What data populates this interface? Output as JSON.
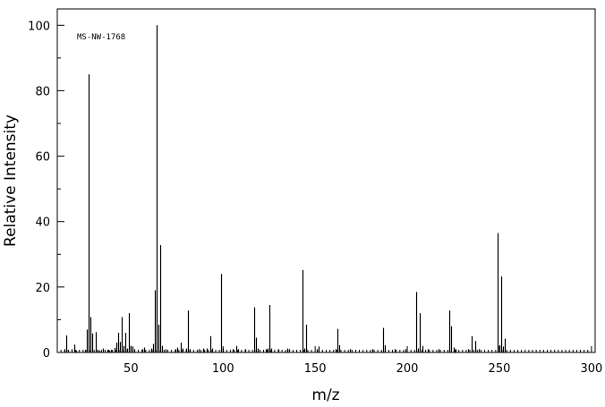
{
  "chart_data": {
    "type": "bar",
    "title": "",
    "annotation": "MS-NW-1768",
    "xlabel": "m/z",
    "ylabel": "Relative Intensity",
    "xlim": [
      10,
      302
    ],
    "ylim": [
      0,
      105
    ],
    "x_major_ticks": [
      50,
      100,
      150,
      200,
      250,
      300
    ],
    "y_major_ticks": [
      0,
      20,
      40,
      60,
      80,
      100
    ],
    "x_minor_step": 2,
    "y_minor_step": 10,
    "grid": false,
    "peaks": [
      [
        14,
        1.0
      ],
      [
        15,
        5.2
      ],
      [
        16,
        0.8
      ],
      [
        18,
        1.0
      ],
      [
        19,
        2.4
      ],
      [
        20,
        0.6
      ],
      [
        25,
        0.8
      ],
      [
        26,
        7.0
      ],
      [
        27,
        85.0
      ],
      [
        28,
        10.8
      ],
      [
        29,
        5.8
      ],
      [
        31,
        6.2
      ],
      [
        32,
        0.8
      ],
      [
        33,
        0.6
      ],
      [
        35,
        1.2
      ],
      [
        37,
        0.8
      ],
      [
        38,
        0.6
      ],
      [
        39,
        0.8
      ],
      [
        41,
        1.4
      ],
      [
        42,
        3.0
      ],
      [
        43,
        6.0
      ],
      [
        44,
        3.2
      ],
      [
        45,
        10.8
      ],
      [
        46,
        2.0
      ],
      [
        47,
        6.0
      ],
      [
        48,
        1.2
      ],
      [
        49,
        12.0
      ],
      [
        50,
        2.0
      ],
      [
        51,
        1.8
      ],
      [
        52,
        1.0
      ],
      [
        56,
        1.0
      ],
      [
        57,
        1.5
      ],
      [
        61,
        1.2
      ],
      [
        62,
        2.6
      ],
      [
        63,
        19.0
      ],
      [
        64,
        100.0
      ],
      [
        65,
        8.5
      ],
      [
        66,
        32.8
      ],
      [
        67,
        2.0
      ],
      [
        69,
        1.0
      ],
      [
        74,
        1.0
      ],
      [
        75,
        1.5
      ],
      [
        77,
        3.0
      ],
      [
        78,
        1.2
      ],
      [
        80,
        1.2
      ],
      [
        81,
        12.8
      ],
      [
        82,
        1.0
      ],
      [
        87,
        1.0
      ],
      [
        89,
        1.2
      ],
      [
        91,
        1.2
      ],
      [
        93,
        5.0
      ],
      [
        94,
        1.2
      ],
      [
        99,
        24.0
      ],
      [
        100,
        1.2
      ],
      [
        105,
        1.0
      ],
      [
        107,
        2.0
      ],
      [
        108,
        1.0
      ],
      [
        112,
        1.0
      ],
      [
        117,
        13.8
      ],
      [
        118,
        4.5
      ],
      [
        119,
        1.2
      ],
      [
        123,
        1.0
      ],
      [
        124,
        1.2
      ],
      [
        125,
        14.5
      ],
      [
        126,
        1.2
      ],
      [
        130,
        1.0
      ],
      [
        135,
        1.2
      ],
      [
        136,
        1.0
      ],
      [
        143,
        25.2
      ],
      [
        144,
        1.2
      ],
      [
        145,
        8.5
      ],
      [
        151,
        1.0
      ],
      [
        152,
        1.8
      ],
      [
        161,
        1.0
      ],
      [
        162,
        7.2
      ],
      [
        163,
        2.2
      ],
      [
        169,
        1.0
      ],
      [
        181,
        1.0
      ],
      [
        187,
        7.5
      ],
      [
        188,
        2.2
      ],
      [
        193,
        1.0
      ],
      [
        199,
        1.0
      ],
      [
        205,
        18.5
      ],
      [
        206,
        1.2
      ],
      [
        207,
        12.0
      ],
      [
        208,
        2.0
      ],
      [
        211,
        1.0
      ],
      [
        217,
        1.0
      ],
      [
        223,
        12.8
      ],
      [
        224,
        8.0
      ],
      [
        225,
        1.5
      ],
      [
        226,
        1.0
      ],
      [
        233,
        1.0
      ],
      [
        235,
        5.0
      ],
      [
        237,
        3.5
      ],
      [
        239,
        1.0
      ],
      [
        249,
        36.5
      ],
      [
        250,
        2.2
      ],
      [
        251,
        23.2
      ],
      [
        252,
        1.8
      ],
      [
        253,
        4.2
      ]
    ]
  }
}
